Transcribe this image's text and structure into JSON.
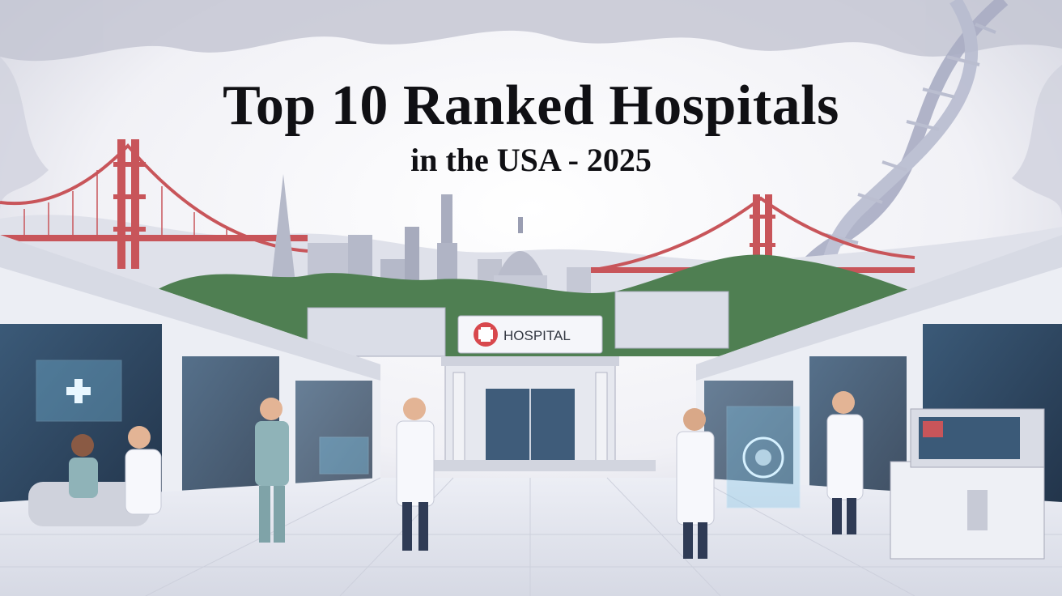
{
  "headline": {
    "title": "Top 10 Ranked Hospitals",
    "subtitle": "in the USA - 2025"
  },
  "sign": {
    "text": "HOSPITAL"
  },
  "palette": {
    "bridge_red": "#c8555a",
    "sky": "#f3f3f7",
    "cloud_gray": "#c9cbd8",
    "floor": "#e3e5ee",
    "coat_white": "#f7f8fc",
    "scrubs_teal": "#8fb3b8",
    "screen_glow": "#7fc4e6",
    "greenery": "#4f7f52"
  },
  "icons": [
    "red-cross-icon",
    "dna-helix-icon",
    "capitol-dome-icon",
    "golden-gate-bridge-icon"
  ]
}
